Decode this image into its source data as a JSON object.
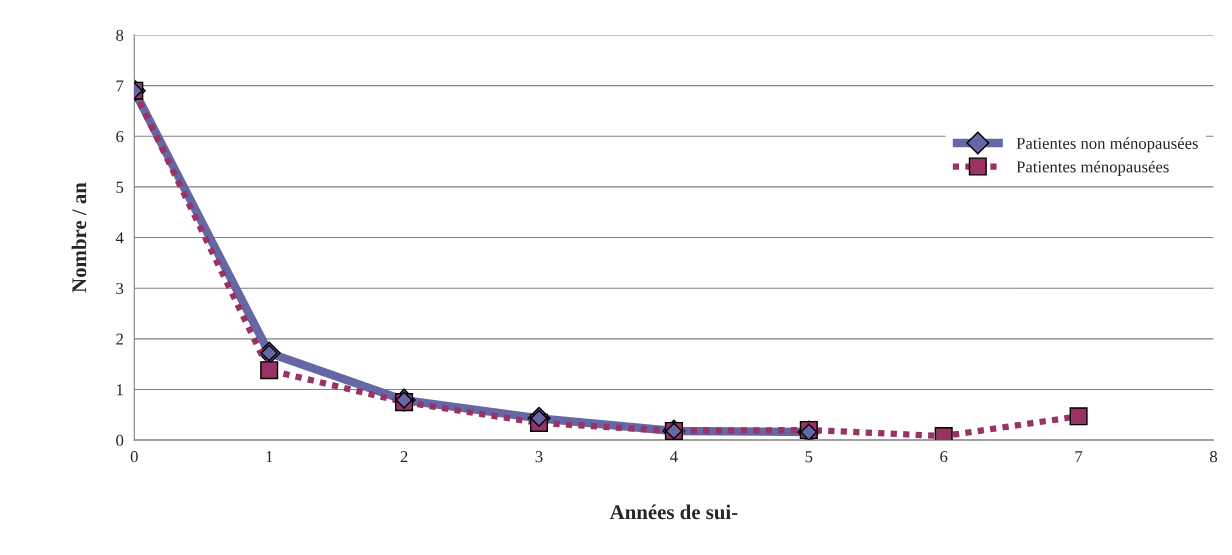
{
  "chart_data": {
    "type": "line",
    "xlabel": "Années de sui-",
    "ylabel": "Nombre / an",
    "xlim": [
      0,
      8
    ],
    "xticks": [
      0,
      1,
      2,
      3,
      4,
      5,
      6,
      7,
      8
    ],
    "ylim": [
      0,
      8
    ],
    "yticks": [
      0,
      1,
      2,
      3,
      4,
      5,
      6,
      7,
      8
    ],
    "grid": "y",
    "legend": "right",
    "series": [
      {
        "name": "Patientes non ménopausées",
        "color": "#6668a6",
        "marker": "diamond",
        "line_style": "solid",
        "x": [
          0,
          1,
          2,
          3,
          4,
          5
        ],
        "values": [
          6.9,
          1.72,
          0.79,
          0.43,
          0.18,
          0.16
        ]
      },
      {
        "name": "Patientes ménopausées",
        "color": "#993366",
        "marker": "square",
        "line_style": "dotted",
        "x": [
          0,
          1,
          2,
          3,
          4,
          5,
          6,
          7
        ],
        "values": [
          6.9,
          1.38,
          0.75,
          0.34,
          0.18,
          0.2,
          0.08,
          0.47
        ]
      }
    ]
  }
}
